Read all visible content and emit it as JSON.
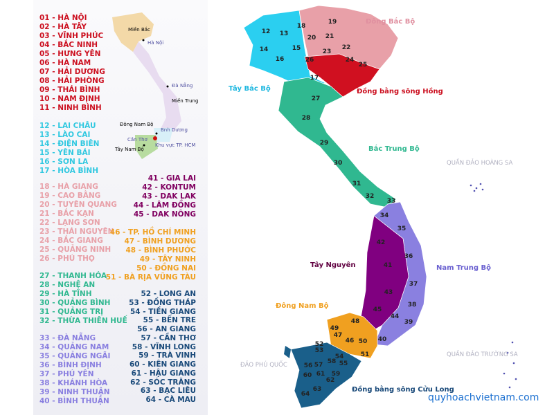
{
  "legend": [
    {
      "color": "#cc1020",
      "items": [
        "01 - HÀ NỘI",
        "02 - HÀ TÂY",
        "03 - VĨNH PHÚC",
        "04 - BẮC NINH",
        "05 - HƯNG YÊN",
        "06 - HÀ NAM",
        "07 - HẢI DƯƠNG",
        "08 - HẢI PHÒNG",
        "09 - THÁI BÌNH",
        "10 - NAM ĐỊNH",
        "11 - NINH BÌNH"
      ]
    },
    {
      "color": "#30c8e0",
      "items": [
        "12 - LAI CHÂU",
        "13 - LÀO CAI",
        "14 - ĐIỆN BIÊN",
        "15 - YÊN BÁI",
        "16 - SƠN LA",
        "17 - HÒA BÌNH"
      ]
    },
    {
      "color": "#e8a0a8",
      "items": [
        "18 - HÀ GIANG",
        "19 - CAO BẰNG",
        "20 - TUYÊN QUANG",
        "21 - BẮC KẠN",
        "22 - LẠNG SƠN",
        "23 - THÁI NGUYÊN",
        "24 - BẮC GIANG",
        "25 - QUẢNG NINH",
        "26 - PHÚ THỌ"
      ]
    },
    {
      "color": "#30b890",
      "items": [
        "27 - THANH HÓA",
        "28 - NGHỆ AN",
        "29 - HÀ TĨNH",
        "30 - QUẢNG BÌNH",
        "31 - QUẢNG TRỊ",
        "32 - THỪA THIÊN HUẾ"
      ]
    },
    {
      "color": "#8a80e0",
      "items": [
        "33 - ĐÀ NẴNG",
        "34 - QUẢNG NAM",
        "35 - QUẢNG NGÃI",
        "36 - BÌNH ĐỊNH",
        "37 - PHÚ YÊN",
        "38 - KHÁNH HÒA",
        "39 - NINH THUẬN",
        "40 - BÌNH THUẬN"
      ]
    },
    {
      "color": "#800060",
      "items": [
        "41 - GIA LAI",
        "42 - KONTUM",
        "43 - DAK LAK",
        "44 - LÂM ĐỒNG",
        "45 - DAK NÔNG"
      ]
    },
    {
      "color": "#f0a020",
      "items": [
        "46 - TP. HỒ CHÍ MINH",
        "47 - BÌNH DƯƠNG",
        "48 - BÌNH PHƯỚC",
        "49 - TÂY NINH",
        "50 - ĐỒNG NAI",
        "51 - BÀ RỊA VŨNG TÀU"
      ]
    },
    {
      "color": "#1a4a7a",
      "items": [
        "52 - LONG AN",
        "53 - ĐỒNG THÁP",
        "54 - TIỀN GIANG",
        "55 - BẾN TRE",
        "56 - AN GIANG",
        "57 - CẦN THƠ",
        "58 - VĨNH LONG",
        "59 - TRÀ VINH",
        "60 - KIÊN GIANG",
        "61 - HẬU GIANG",
        "62 - SÓC TRĂNG",
        "63 - BẠC LIÊU",
        "64 - CÀ MAU"
      ]
    }
  ],
  "inset": {
    "mien_bac": "Miền Bắc",
    "ha_noi": "Hà Nội",
    "da_nang": "Đà Nẵng",
    "mien_trung": "Miền Trung",
    "dong_nam_bo": "Đông Nam Bộ",
    "binh_duong": "Bnh Dương",
    "can_tho": "Cần Thơ",
    "tp_hcm": "Khu vực TP. HCM",
    "tay_nam_bo": "Tây Nam Bộ"
  },
  "regions": {
    "dong_bac": "Đông Bắc Bộ",
    "tay_bac": "Tây Bắc Bộ",
    "dong_bang_song_hong": "Đồng bằng sông Hồng",
    "bac_trung_bo": "Bắc Trung Bộ",
    "hoang_sa": "QUẦN ĐẢO HOÀNG SA",
    "tay_nguyen": "Tây Nguyên",
    "nam_trung_bo": "Nam Trung Bộ",
    "dong_nam_bo": "Đông Nam Bộ",
    "phu_quoc": "ĐẢO PHÚ QUỐC",
    "truong_sa": "QUẦN ĐẢO TRƯỜNG SA",
    "cuu_long": "Đồng bằng sông Cửu Long"
  },
  "province_numbers": [
    "12",
    "13",
    "14",
    "15",
    "16",
    "17",
    "18",
    "19",
    "20",
    "21",
    "22",
    "23",
    "24",
    "25",
    "26",
    "27",
    "28",
    "29",
    "30",
    "31",
    "32",
    "33",
    "34",
    "35",
    "36",
    "37",
    "38",
    "39",
    "40",
    "41",
    "42",
    "43",
    "44",
    "45",
    "46",
    "47",
    "48",
    "49",
    "50",
    "51",
    "52",
    "53",
    "54",
    "55",
    "56",
    "57",
    "58",
    "59",
    "60",
    "61",
    "62",
    "63",
    "64"
  ],
  "watermark": "quyhoachvietnam.com"
}
